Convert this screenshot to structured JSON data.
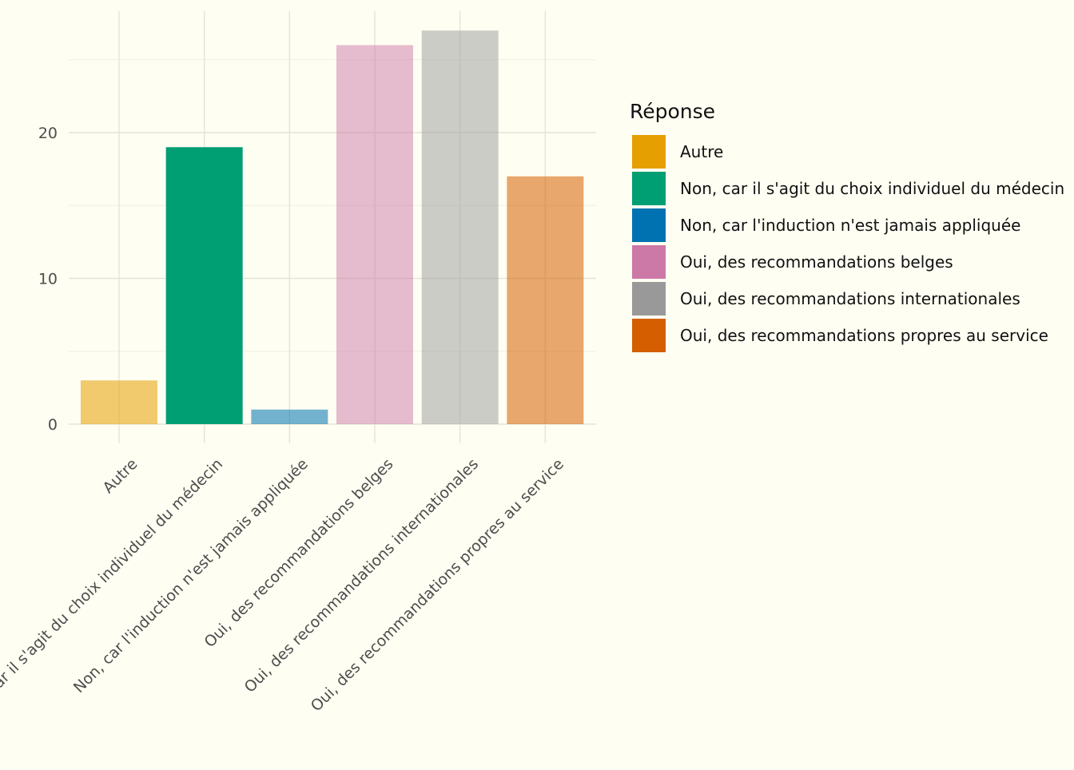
{
  "chart_data": {
    "type": "bar",
    "categories": [
      "Autre",
      "Non, car il s'agit du choix individuel du médecin",
      "Non, car l'induction n'est jamais appliquée",
      "Oui, des recommandations belges",
      "Oui, des recommandations internationales",
      "Oui, des recommandations propres au service"
    ],
    "values": [
      3,
      19,
      1,
      26,
      27,
      17
    ],
    "colors": [
      "#E69F00",
      "#009E73",
      "#0072B2",
      "#CC79A7",
      "#999999",
      "#D55E00"
    ],
    "bar_opacity": [
      0.55,
      1,
      0.55,
      0.5,
      0.5,
      0.55
    ],
    "title": "",
    "xlabel": "",
    "ylabel": "",
    "ylim": [
      0,
      28
    ],
    "y_ticks": [
      0,
      10,
      20
    ],
    "y_tick_labels": [
      "0",
      "10",
      "20"
    ],
    "grid": true,
    "legend": {
      "title": "Réponse",
      "placement": "right",
      "entries": [
        "Autre",
        "Non, car il s'agit du choix individuel du médecin",
        "Non, car l'induction n'est jamais appliquée",
        "Oui, des recommandations belges",
        "Oui, des recommandations internationales",
        "Oui, des recommandations propres au service"
      ]
    }
  }
}
